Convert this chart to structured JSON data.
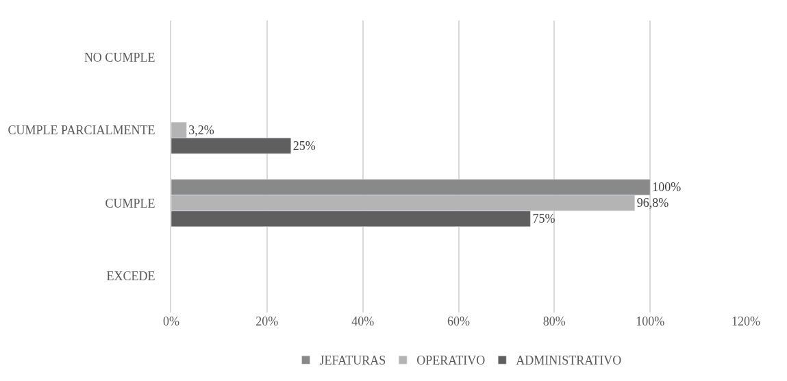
{
  "chart_data": {
    "type": "bar",
    "orientation": "horizontal",
    "categories": [
      "NO CUMPLE",
      "CUMPLE PARCIALMENTE",
      "CUMPLE",
      "EXCEDE"
    ],
    "series": [
      {
        "name": "JEFATURAS",
        "color": "#898989",
        "values": [
          null,
          null,
          100,
          null
        ],
        "value_labels": [
          null,
          null,
          "100%",
          null
        ]
      },
      {
        "name": "OPERATIVO",
        "color": "#b4b4b4",
        "values": [
          null,
          3.2,
          96.8,
          null
        ],
        "value_labels": [
          null,
          "3,2%",
          "96,8%",
          null
        ]
      },
      {
        "name": "ADMINISTRATIVO",
        "color": "#5f5f5f",
        "values": [
          null,
          25,
          75,
          null
        ],
        "value_labels": [
          null,
          "25%",
          "75%",
          null
        ]
      }
    ],
    "xlim": [
      0,
      120
    ],
    "xticks": [
      {
        "value": 0,
        "label": "0%"
      },
      {
        "value": 20,
        "label": "20%"
      },
      {
        "value": 40,
        "label": "40%"
      },
      {
        "value": 60,
        "label": "60%"
      },
      {
        "value": 80,
        "label": "80%"
      },
      {
        "value": 100,
        "label": "100%"
      },
      {
        "value": 120,
        "label": "120%"
      }
    ],
    "grid": "x",
    "legend": "bottom"
  }
}
